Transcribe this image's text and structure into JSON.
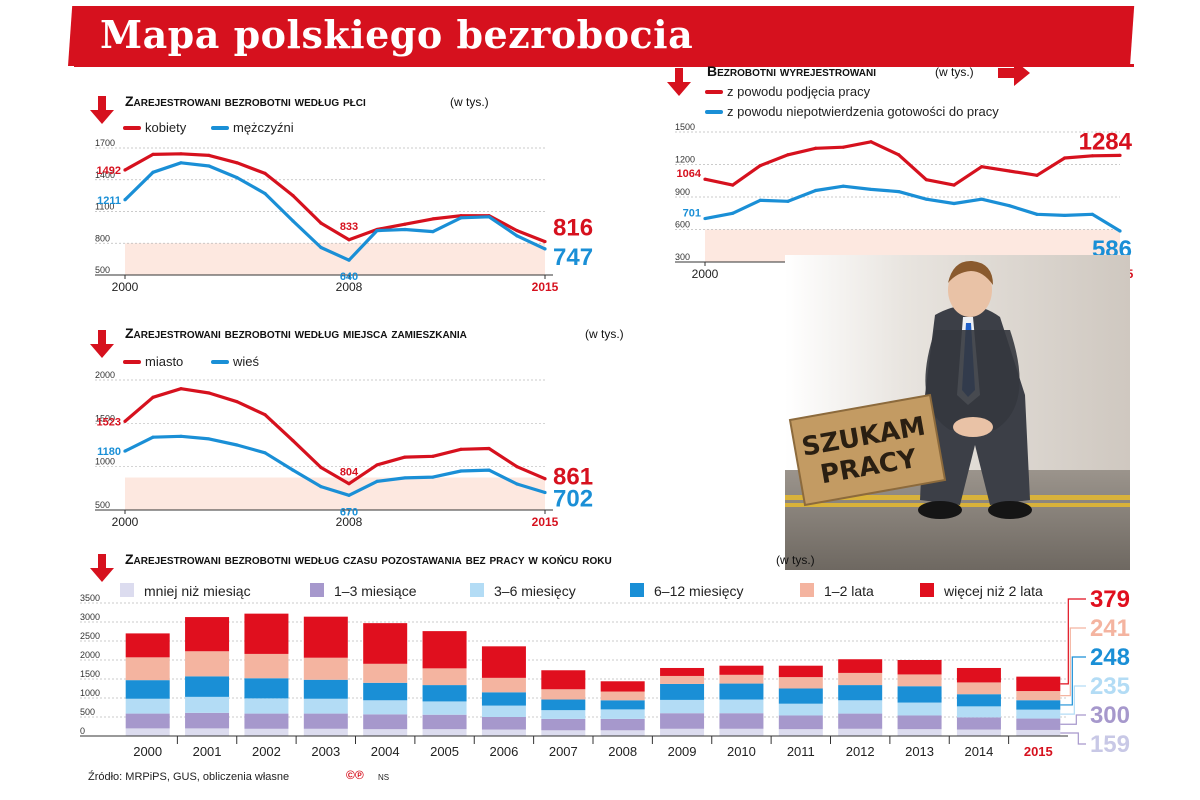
{
  "header": {
    "title": "Mapa polskiego bezrobocia"
  },
  "footer": {
    "source": "Źródło: MRPiPS, GUS, obliczenia własne",
    "logo": "©℗",
    "credit": "NS"
  },
  "photo": {
    "sign_line1": "SZUKAM",
    "sign_line2": "PRACY"
  },
  "colors": {
    "red": "#d6111e",
    "blue": "#1a8fd6",
    "bg_band": "#fde8e0",
    "lt_lavender": "#dcdcef",
    "lavender": "#a698cc",
    "lt_blue": "#b3dcf5",
    "mid_blue": "#1a8fd6",
    "salmon": "#f4b4a0"
  },
  "chart_data": [
    {
      "type": "line",
      "title": "Zarejestrowani bezrobotni według płci",
      "unit": "(w tys.)",
      "x": [
        2000,
        2001,
        2002,
        2003,
        2004,
        2005,
        2006,
        2007,
        2008,
        2009,
        2010,
        2011,
        2012,
        2013,
        2014,
        2015
      ],
      "x_ticks": [
        "2000",
        "2008",
        "2015"
      ],
      "ylim": [
        500,
        1700
      ],
      "y_ticks": [
        "500",
        "800",
        "1100",
        "1400",
        "1700"
      ],
      "series": [
        {
          "name": "kobiety",
          "color": "#d6111e",
          "values": [
            1492,
            1640,
            1645,
            1630,
            1560,
            1460,
            1250,
            990,
            833,
            930,
            980,
            1030,
            1060,
            1060,
            920,
            816
          ],
          "start_label": "1492",
          "mid_label": "833",
          "end_label": "816"
        },
        {
          "name": "mężczyźni",
          "color": "#1a8fd6",
          "values": [
            1211,
            1470,
            1560,
            1530,
            1420,
            1270,
            1010,
            760,
            640,
            920,
            930,
            910,
            1040,
            1050,
            870,
            747
          ],
          "start_label": "1211",
          "mid_label": "640",
          "end_label": "747"
        }
      ]
    },
    {
      "type": "line",
      "title": "Bezrobotni wyrejestrowani",
      "unit": "(w tys.)",
      "x": [
        2000,
        2001,
        2002,
        2003,
        2004,
        2005,
        2006,
        2007,
        2008,
        2009,
        2010,
        2011,
        2012,
        2013,
        2014,
        2015
      ],
      "x_ticks": [
        "2000",
        "2015"
      ],
      "ylim": [
        300,
        1500
      ],
      "y_ticks": [
        "300",
        "600",
        "900",
        "1200",
        "1500"
      ],
      "series": [
        {
          "name": "z powodu podjęcia pracy",
          "color": "#d6111e",
          "values": [
            1064,
            1010,
            1190,
            1290,
            1350,
            1360,
            1410,
            1290,
            1060,
            1010,
            1180,
            1140,
            1100,
            1260,
            1280,
            1284
          ],
          "start_label": "1064",
          "end_label": "1284"
        },
        {
          "name": "z powodu niepotwierdzenia gotowości do pracy",
          "color": "#1a8fd6",
          "values": [
            701,
            750,
            870,
            860,
            960,
            1000,
            970,
            950,
            880,
            840,
            880,
            820,
            740,
            730,
            740,
            586
          ],
          "start_label": "701",
          "end_label": "586"
        }
      ]
    },
    {
      "type": "line",
      "title": "Zarejestrowani bezrobotni według miejsca zamieszkania",
      "unit": "(w tys.)",
      "x": [
        2000,
        2001,
        2002,
        2003,
        2004,
        2005,
        2006,
        2007,
        2008,
        2009,
        2010,
        2011,
        2012,
        2013,
        2014,
        2015
      ],
      "x_ticks": [
        "2000",
        "2008",
        "2015"
      ],
      "ylim": [
        500,
        2000
      ],
      "y_ticks": [
        "500",
        "1000",
        "1500",
        "2000"
      ],
      "series": [
        {
          "name": "miasto",
          "color": "#d6111e",
          "values": [
            1523,
            1800,
            1900,
            1850,
            1750,
            1600,
            1300,
            990,
            804,
            1020,
            1110,
            1120,
            1200,
            1210,
            1000,
            861
          ],
          "start_label": "1523",
          "mid_label": "804",
          "end_label": "861"
        },
        {
          "name": "wieś",
          "color": "#1a8fd6",
          "values": [
            1180,
            1340,
            1350,
            1320,
            1250,
            1160,
            960,
            770,
            670,
            830,
            870,
            880,
            950,
            960,
            800,
            702
          ],
          "start_label": "1180",
          "mid_label": "670",
          "end_label": "702"
        }
      ]
    },
    {
      "type": "bar",
      "stacked": true,
      "title": "Zarejestrowani bezrobotni według czasu pozostawania bez pracy w końcu roku",
      "unit": "(w tys.)",
      "categories": [
        "2000",
        "2001",
        "2002",
        "2003",
        "2004",
        "2005",
        "2006",
        "2007",
        "2008",
        "2009",
        "2010",
        "2011",
        "2012",
        "2013",
        "2014",
        "2015"
      ],
      "ylim": [
        0,
        3500
      ],
      "y_ticks": [
        "0",
        "500",
        "1000",
        "1500",
        "2000",
        "2500",
        "3000",
        "3500"
      ],
      "series": [
        {
          "name": "mniej niż miesiąc",
          "color": "#dcdcef",
          "values": [
            200,
            200,
            190,
            190,
            180,
            180,
            170,
            150,
            150,
            190,
            190,
            180,
            190,
            180,
            170,
            159
          ]
        },
        {
          "name": "1–3 miesiące",
          "color": "#a698cc",
          "values": [
            390,
            410,
            400,
            400,
            390,
            380,
            330,
            300,
            300,
            410,
            410,
            360,
            400,
            360,
            320,
            300
          ]
        },
        {
          "name": "3–6 miesięcy",
          "color": "#b3dcf5",
          "values": [
            390,
            420,
            400,
            390,
            370,
            350,
            300,
            230,
            250,
            350,
            360,
            310,
            350,
            340,
            290,
            235
          ]
        },
        {
          "name": "6–12 miesięcy",
          "color": "#1a8fd6",
          "values": [
            490,
            540,
            530,
            500,
            460,
            430,
            350,
            280,
            240,
            420,
            420,
            400,
            400,
            430,
            320,
            248
          ]
        },
        {
          "name": "1–2 lata",
          "color": "#f4b4a0",
          "values": [
            600,
            660,
            640,
            580,
            500,
            440,
            380,
            270,
            230,
            210,
            230,
            300,
            320,
            310,
            310,
            241
          ]
        },
        {
          "name": "więcej niż 2 lata",
          "color": "#e00f1e",
          "values": [
            630,
            900,
            1060,
            1080,
            1070,
            980,
            830,
            500,
            270,
            210,
            240,
            300,
            360,
            380,
            380,
            379
          ]
        }
      ],
      "end_labels": [
        "379",
        "241",
        "248",
        "235",
        "300",
        "159"
      ]
    }
  ]
}
